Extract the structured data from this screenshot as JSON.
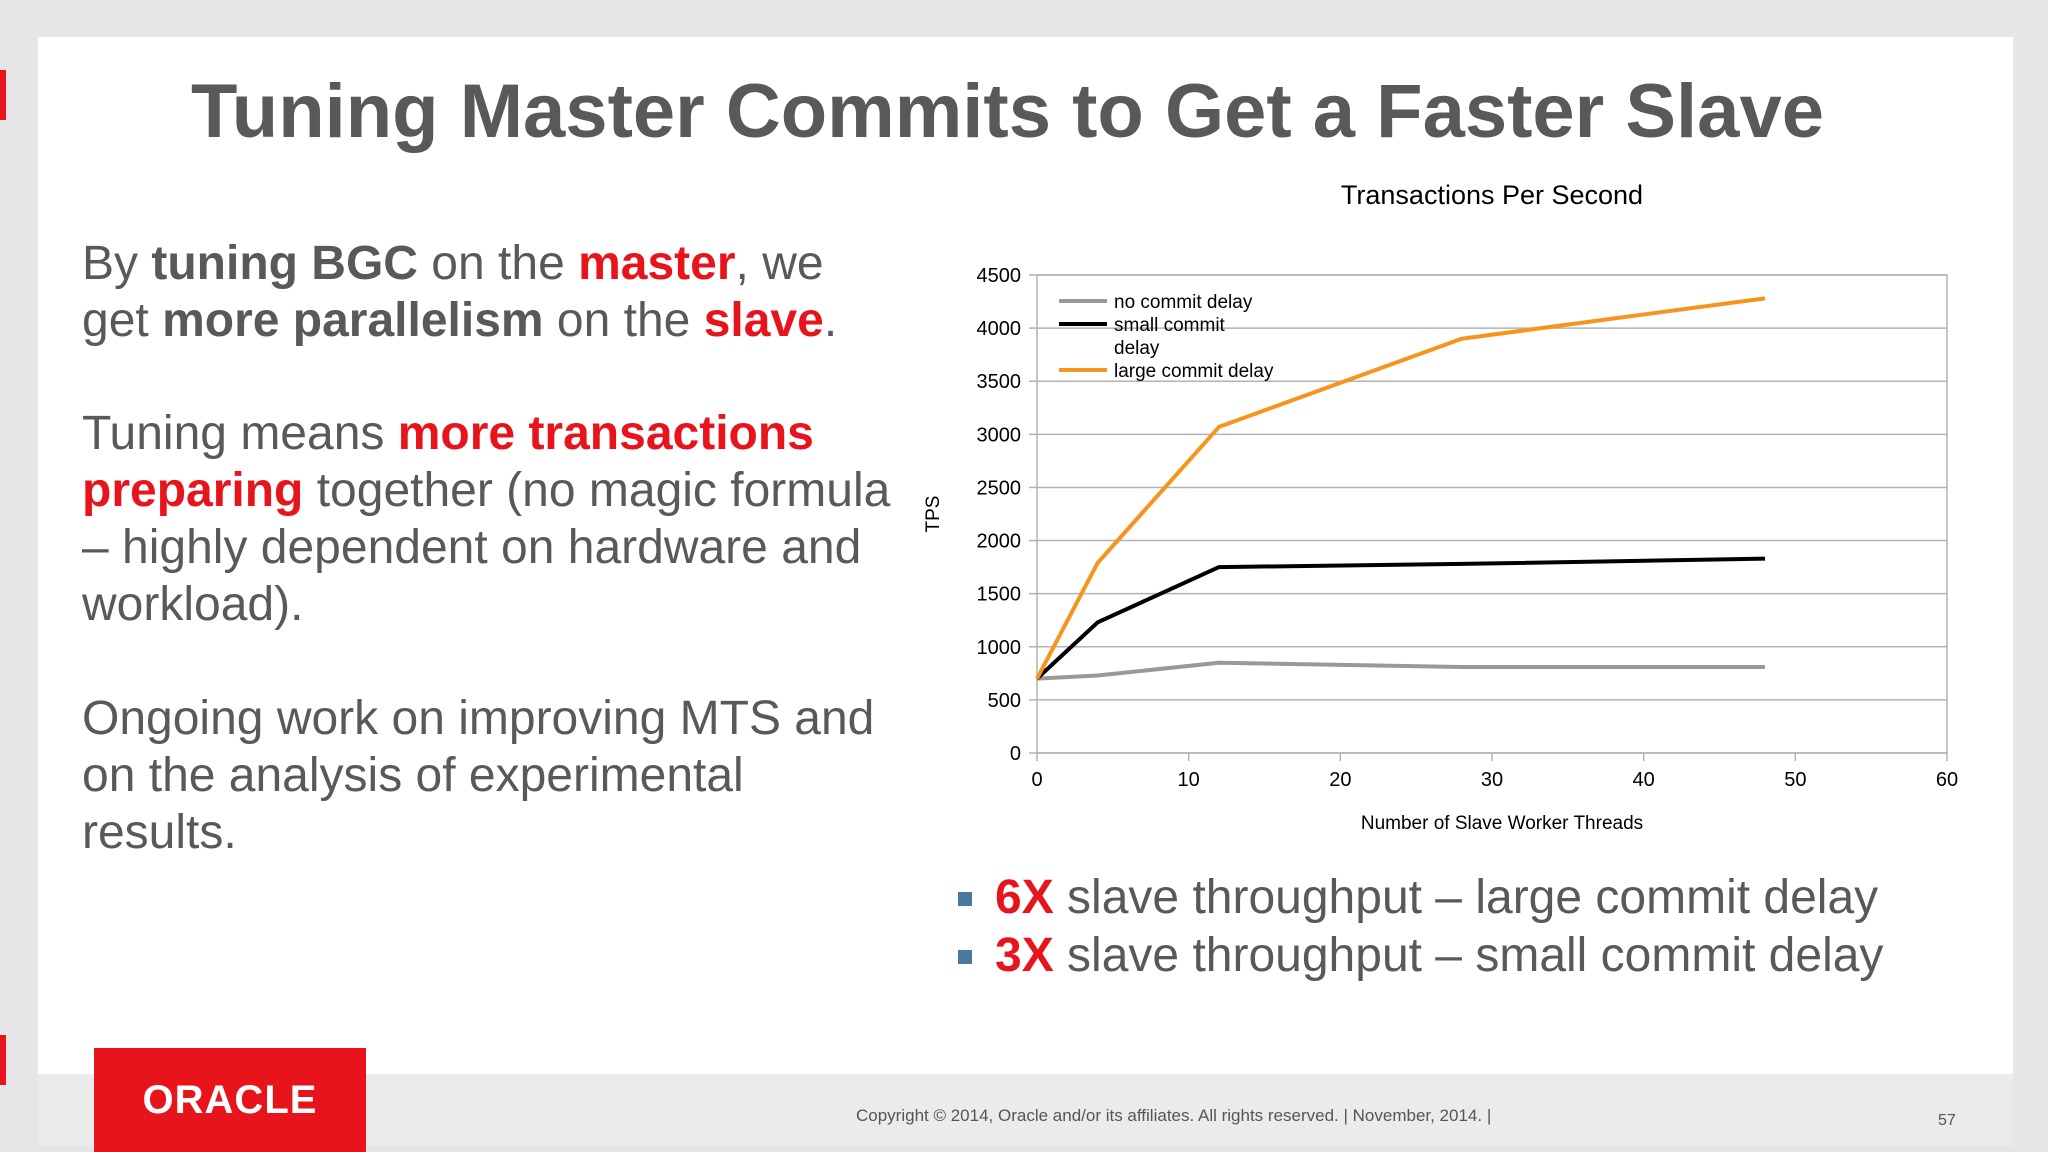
{
  "slide": {
    "title": "Tuning Master Commits to Get a Faster Slave",
    "p1": {
      "a": "By ",
      "b": "tuning BGC",
      "c": " on the ",
      "d": "master",
      "e": ", we get ",
      "f": "more parallelism",
      "g": " on the ",
      "h": "slave",
      "i": "."
    },
    "p2": {
      "a": "Tuning means ",
      "b": "more transactions preparing",
      "c": " together (no magic formula – highly dependent on hardware and workload)."
    },
    "p3": "Ongoing work on improving MTS and on the analysis of experimental results.",
    "bullets": [
      {
        "bold": "6X",
        "text": " slave throughput – large commit delay"
      },
      {
        "bold": "3X",
        "text": " slave throughput – small commit delay"
      }
    ],
    "logo": "ORACLE",
    "copyright": "Copyright © 2014, Oracle and/or its affiliates. All rights reserved. | November, 2014. |",
    "page_number": "57"
  },
  "colors": {
    "accent_red": "#e8141b",
    "no_delay": "#999999",
    "small_delay": "#000000",
    "large_delay": "#f7941d",
    "bullet": "#4a7aa0"
  },
  "chart_data": {
    "type": "line",
    "title": "Transactions Per Second",
    "xlabel": "Number of Slave Worker Threads",
    "ylabel": "TPS",
    "xlim": [
      0,
      60
    ],
    "ylim": [
      0,
      4500
    ],
    "xticks": [
      0,
      10,
      20,
      30,
      40,
      50,
      60
    ],
    "yticks": [
      0,
      500,
      1000,
      1500,
      2000,
      2500,
      3000,
      3500,
      4000,
      4500
    ],
    "grid": true,
    "legend_position": "top-left",
    "series": [
      {
        "name": "no commit delay",
        "color": "#999999",
        "x": [
          0,
          4,
          12,
          28,
          48
        ],
        "y": [
          700,
          730,
          850,
          810,
          810
        ]
      },
      {
        "name": "small commit delay",
        "color": "#000000",
        "x": [
          0,
          4,
          12,
          28,
          48
        ],
        "y": [
          700,
          1230,
          1750,
          1780,
          1830
        ]
      },
      {
        "name": "large commit delay",
        "color": "#f7941d",
        "x": [
          0,
          4,
          12,
          28,
          48
        ],
        "y": [
          700,
          1790,
          3070,
          3900,
          4280
        ]
      }
    ]
  }
}
